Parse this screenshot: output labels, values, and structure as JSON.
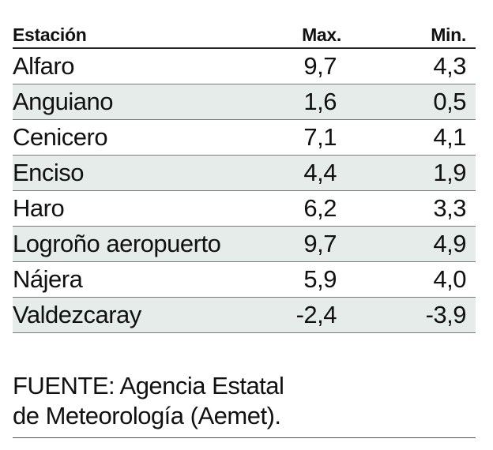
{
  "table": {
    "headers": {
      "station": "Estación",
      "max": "Max.",
      "min": "Min."
    },
    "rows": [
      {
        "station": "Alfaro",
        "max": "9,7",
        "min": "4,3"
      },
      {
        "station": "Anguiano",
        "max": "1,6",
        "min": "0,5"
      },
      {
        "station": "Cenicero",
        "max": "7,1",
        "min": "4,1"
      },
      {
        "station": "Enciso",
        "max": "4,4",
        "min": "1,9"
      },
      {
        "station": "Haro",
        "max": "6,2",
        "min": "3,3"
      },
      {
        "station": "Logroño aeropuerto",
        "max": "9,7",
        "min": "4,9"
      },
      {
        "station": "Nájera",
        "max": "5,9",
        "min": "4,0"
      },
      {
        "station": "Valdezcaray",
        "max": "-2,4",
        "min": "-3,9"
      }
    ],
    "alt_row_color": "#e6ecea"
  },
  "source": {
    "line1": "FUENTE: Agencia Estatal",
    "line2": "de Meteorología (Aemet)."
  }
}
